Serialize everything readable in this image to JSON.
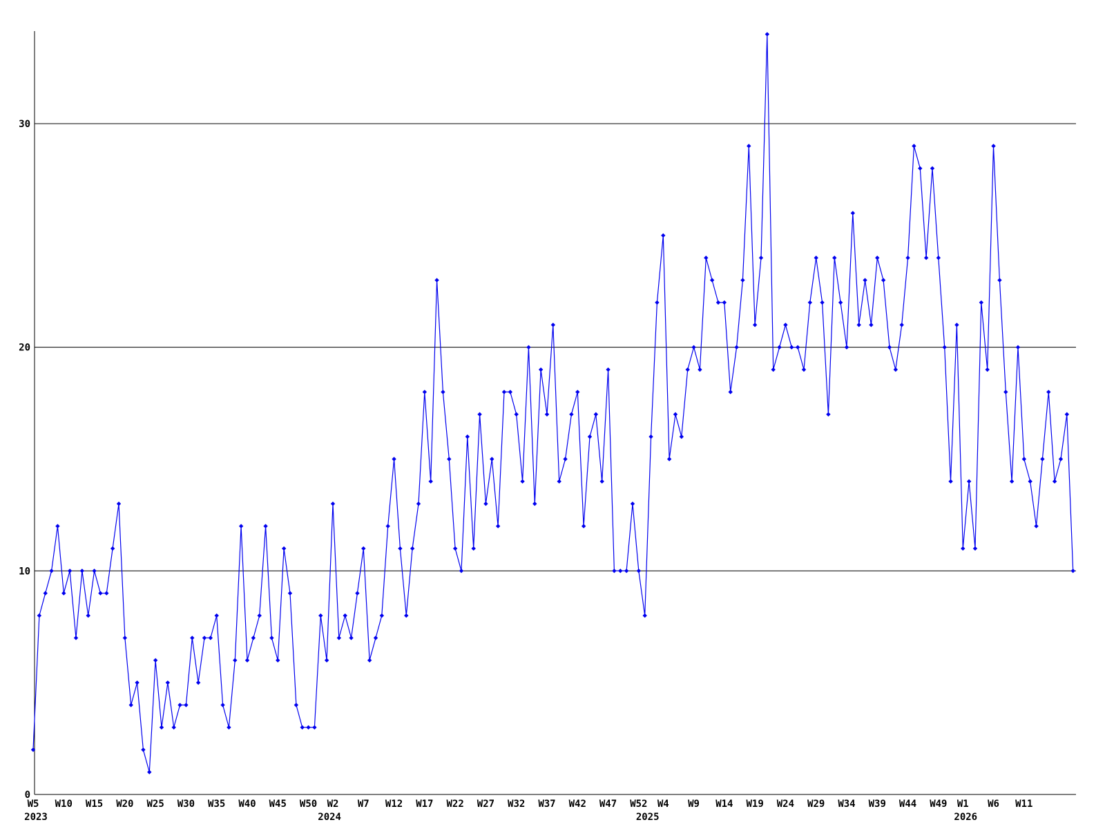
{
  "chart_data": {
    "type": "line",
    "title": "",
    "xlabel": "",
    "ylabel": "",
    "ylim": [
      0,
      35
    ],
    "grid": "horizontal",
    "background_color": "#ffffff",
    "axis_color": "#000000",
    "gridline_color": "#000000",
    "x_start": "2023-W5",
    "x_step": "1 week",
    "y_ticks": [
      {
        "value": 0,
        "label": "0"
      },
      {
        "value": 10,
        "label": "10"
      },
      {
        "value": 20,
        "label": "20"
      },
      {
        "value": 30,
        "label": "30"
      }
    ],
    "x_ticks": [
      {
        "index": 0,
        "label": "W5"
      },
      {
        "index": 5,
        "label": "W10"
      },
      {
        "index": 10,
        "label": "W15"
      },
      {
        "index": 15,
        "label": "W20"
      },
      {
        "index": 20,
        "label": "W25"
      },
      {
        "index": 25,
        "label": "W30"
      },
      {
        "index": 30,
        "label": "W35"
      },
      {
        "index": 35,
        "label": "W40"
      },
      {
        "index": 40,
        "label": "W45"
      },
      {
        "index": 45,
        "label": "W50"
      },
      {
        "index": 49,
        "label": "W2"
      },
      {
        "index": 54,
        "label": "W7"
      },
      {
        "index": 59,
        "label": "W12"
      },
      {
        "index": 64,
        "label": "W17"
      },
      {
        "index": 69,
        "label": "W22"
      },
      {
        "index": 74,
        "label": "W27"
      },
      {
        "index": 79,
        "label": "W32"
      },
      {
        "index": 84,
        "label": "W37"
      },
      {
        "index": 89,
        "label": "W42"
      },
      {
        "index": 94,
        "label": "W47"
      },
      {
        "index": 99,
        "label": "W52"
      },
      {
        "index": 103,
        "label": "W4"
      },
      {
        "index": 108,
        "label": "W9"
      },
      {
        "index": 113,
        "label": "W14"
      },
      {
        "index": 118,
        "label": "W19"
      },
      {
        "index": 123,
        "label": "W24"
      },
      {
        "index": 128,
        "label": "W29"
      },
      {
        "index": 133,
        "label": "W34"
      },
      {
        "index": 138,
        "label": "W39"
      },
      {
        "index": 143,
        "label": "W44"
      },
      {
        "index": 148,
        "label": "W49"
      },
      {
        "index": 152,
        "label": "W1"
      },
      {
        "index": 157,
        "label": "W6"
      },
      {
        "index": 162,
        "label": "W11"
      }
    ],
    "year_labels": [
      {
        "index": 0,
        "label": "2023"
      },
      {
        "index": 48,
        "label": "2024"
      },
      {
        "index": 100,
        "label": "2025"
      },
      {
        "index": 152,
        "label": "2026"
      }
    ],
    "series": [
      {
        "name": "weekly-values",
        "color": "#0000ee",
        "marker": "diamond",
        "values": [
          2,
          8,
          9,
          10,
          12,
          9,
          10,
          7,
          10,
          8,
          10,
          9,
          9,
          11,
          13,
          7,
          4,
          5,
          2,
          1,
          6,
          3,
          5,
          3,
          4,
          4,
          7,
          5,
          7,
          7,
          8,
          4,
          3,
          6,
          12,
          6,
          7,
          8,
          12,
          7,
          6,
          11,
          9,
          4,
          3,
          3,
          3,
          8,
          6,
          13,
          7,
          8,
          7,
          9,
          11,
          6,
          7,
          8,
          12,
          15,
          11,
          8,
          11,
          13,
          18,
          14,
          23,
          18,
          15,
          11,
          10,
          16,
          11,
          17,
          13,
          15,
          12,
          18,
          18,
          17,
          14,
          20,
          13,
          19,
          17,
          21,
          14,
          15,
          17,
          18,
          12,
          16,
          17,
          14,
          19,
          10,
          10,
          10,
          13,
          10,
          8,
          16,
          22,
          25,
          15,
          17,
          16,
          19,
          20,
          19,
          24,
          23,
          22,
          22,
          18,
          20,
          23,
          29,
          21,
          24,
          34,
          19,
          20,
          21,
          20,
          20,
          19,
          22,
          24,
          22,
          17,
          24,
          22,
          20,
          26,
          21,
          23,
          21,
          24,
          23,
          20,
          19,
          21,
          24,
          29,
          28,
          24,
          28,
          24,
          20,
          14,
          21,
          11,
          14,
          11,
          22,
          19,
          29,
          23,
          18,
          14,
          20,
          15,
          14,
          12,
          15,
          18,
          14,
          15,
          17,
          10
        ]
      }
    ]
  }
}
